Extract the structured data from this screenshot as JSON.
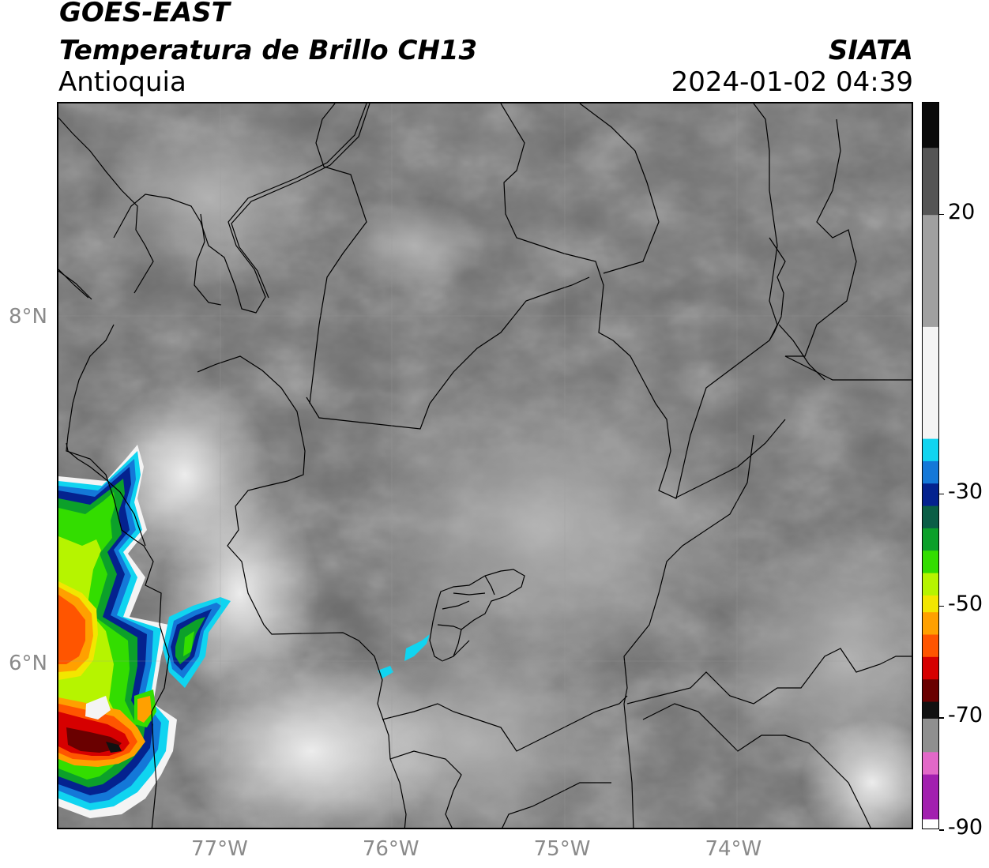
{
  "header": {
    "satellite": "GOES-EAST",
    "product": "Temperatura de Brillo CH13",
    "region": "Antioquia",
    "agency": "SIATA",
    "datetime": "2024-01-02 04:39"
  },
  "map": {
    "lon_range": [
      -77.95,
      -72.95
    ],
    "lat_range": [
      5.05,
      9.25
    ],
    "lat_ticks": [
      {
        "value": 8,
        "label": "8°N"
      },
      {
        "value": 6,
        "label": "6°N"
      }
    ],
    "lon_ticks": [
      {
        "value": -77,
        "label": "77°W"
      },
      {
        "value": -76,
        "label": "76°W"
      },
      {
        "value": -75,
        "label": "75°W"
      },
      {
        "value": -74,
        "label": "74°W"
      }
    ],
    "grid": true
  },
  "colorbar": {
    "units_range": [
      -90,
      40
    ],
    "ticks": [
      {
        "value": 20,
        "label": "20"
      },
      {
        "value": -30,
        "label": "-30"
      },
      {
        "value": -50,
        "label": "-50"
      },
      {
        "value": -70,
        "label": "-70"
      },
      {
        "value": -90,
        "label": "-90"
      }
    ],
    "segments": [
      {
        "from": -90,
        "to": -88,
        "color": "#ffffff"
      },
      {
        "from": -88,
        "to": -80,
        "color": "#a21faf"
      },
      {
        "from": -80,
        "to": -76,
        "color": "#e268c8"
      },
      {
        "from": -76,
        "to": -70,
        "color": "#8f8f8f"
      },
      {
        "from": -70,
        "to": -67,
        "color": "#111111"
      },
      {
        "from": -67,
        "to": -63,
        "color": "#6a0000"
      },
      {
        "from": -63,
        "to": -59,
        "color": "#d60000"
      },
      {
        "from": -59,
        "to": -55,
        "color": "#ff5500"
      },
      {
        "from": -55,
        "to": -51,
        "color": "#ffa000"
      },
      {
        "from": -51,
        "to": -48,
        "color": "#f2e600"
      },
      {
        "from": -48,
        "to": -44,
        "color": "#b6f400"
      },
      {
        "from": -44,
        "to": -40,
        "color": "#33dd00"
      },
      {
        "from": -40,
        "to": -36,
        "color": "#0ca02a"
      },
      {
        "from": -36,
        "to": -32,
        "color": "#0a5e46"
      },
      {
        "from": -32,
        "to": -28,
        "color": "#04228f"
      },
      {
        "from": -28,
        "to": -24,
        "color": "#1478d8"
      },
      {
        "from": -24,
        "to": -20,
        "color": "#10d4f0"
      },
      {
        "from": -20,
        "to": 0,
        "color": "#f4f4f4"
      },
      {
        "from": 0,
        "to": 20,
        "color": "#a0a0a0"
      },
      {
        "from": 20,
        "to": 32,
        "color": "#555555"
      },
      {
        "from": 32,
        "to": 40,
        "color": "#0a0a0a"
      }
    ]
  }
}
